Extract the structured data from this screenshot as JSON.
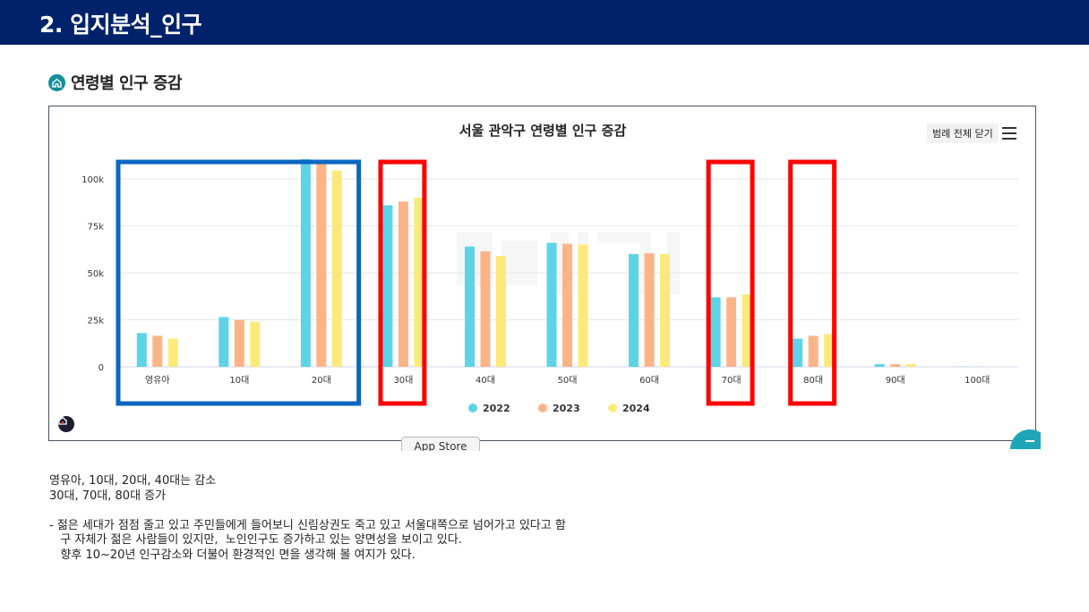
{
  "header": {
    "title": "2. 입지분석_인구"
  },
  "section": {
    "title": "연령별 인구 증감",
    "icon": "home-icon"
  },
  "chart_controls": {
    "legend_toggle_label": "범례 전체 닫기",
    "menu_icon": "hamburger-menu-icon",
    "logo_icon": "home-logo-icon"
  },
  "overlay": {
    "app_store_label": "App Store",
    "scroll_top_icon": "scroll-to-top-icon"
  },
  "colors": {
    "header_bg": "#00226b",
    "highlight_decrease": "#0a66c2",
    "highlight_increase": "#ff0000"
  },
  "chart_data": {
    "type": "bar",
    "title": "서울 관악구 연령별 인구 증감",
    "xlabel": "",
    "ylabel": "",
    "categories": [
      "영유아",
      "10대",
      "20대",
      "30대",
      "40대",
      "50대",
      "60대",
      "70대",
      "80대",
      "90대",
      "100대"
    ],
    "series": [
      {
        "name": "2022",
        "color": "#5cd3e6",
        "values": [
          18000,
          26500,
          110500,
          86000,
          64000,
          66000,
          60000,
          37000,
          15000,
          1500,
          100
        ]
      },
      {
        "name": "2023",
        "color": "#fcb487",
        "values": [
          16500,
          25000,
          108500,
          88000,
          61500,
          65500,
          60500,
          37000,
          16500,
          1500,
          100
        ]
      },
      {
        "name": "2024",
        "color": "#fde97a",
        "values": [
          15000,
          24000,
          104500,
          90000,
          59000,
          65000,
          60000,
          38500,
          17500,
          1500,
          100
        ]
      }
    ],
    "ylim": [
      0,
      110000
    ],
    "yticks": [
      0,
      25000,
      50000,
      75000,
      100000
    ],
    "ytick_labels": [
      "0",
      "25k",
      "50k",
      "75k",
      "100k"
    ],
    "grid": true,
    "legend": "bottom-center",
    "highlight_groups": [
      {
        "color": "blue",
        "categories": [
          "영유아",
          "10대",
          "20대"
        ]
      },
      {
        "color": "red",
        "categories": [
          "30대"
        ]
      },
      {
        "color": "red",
        "categories": [
          "70대"
        ]
      },
      {
        "color": "red",
        "categories": [
          "80대"
        ]
      }
    ]
  },
  "notes": {
    "line1": "영유아, 10대, 20대, 40대는 감소",
    "line2": "30대, 70대, 80대 증가",
    "line3": "- 젊은 세대가 점점 줄고 있고 주민들에게 들어보니 신림상권도 죽고 있고 서울대쪽으로 넘어가고 있다고 함",
    "line4": "   구 자체가 젊은 사람들이 있지만,  노인인구도 증가하고 있는 양면성을 보이고 있다.",
    "line5": "   향후 10~20년 인구감소와 더불어 환경적인 면을 생각해 볼 여지가 있다."
  }
}
